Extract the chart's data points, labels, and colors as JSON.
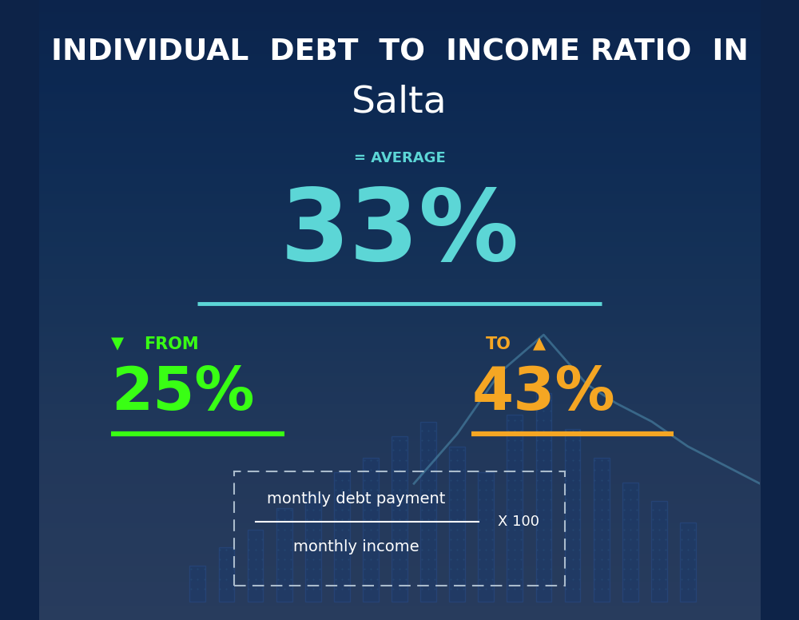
{
  "title_line1": "INDIVIDUAL  DEBT  TO  INCOME RATIO  IN",
  "title_line2": "Salta",
  "bg_color": "#0d2348",
  "average_label": "= AVERAGE",
  "average_value": "33%",
  "average_color": "#5cd6d6",
  "from_label": "FROM",
  "from_value": "25%",
  "from_color": "#39ff14",
  "from_arrow": "▼",
  "to_label": "TO",
  "to_value": "43%",
  "to_color": "#f5a623",
  "to_arrow": "▲",
  "formula_line1": "monthly debt payment",
  "formula_line2": "monthly income",
  "formula_x100": "X 100",
  "title_color": "#ffffff",
  "label_color": "#ffffff",
  "separator_color": "#5cd6d6",
  "fig_width": 10.0,
  "fig_height": 7.76
}
